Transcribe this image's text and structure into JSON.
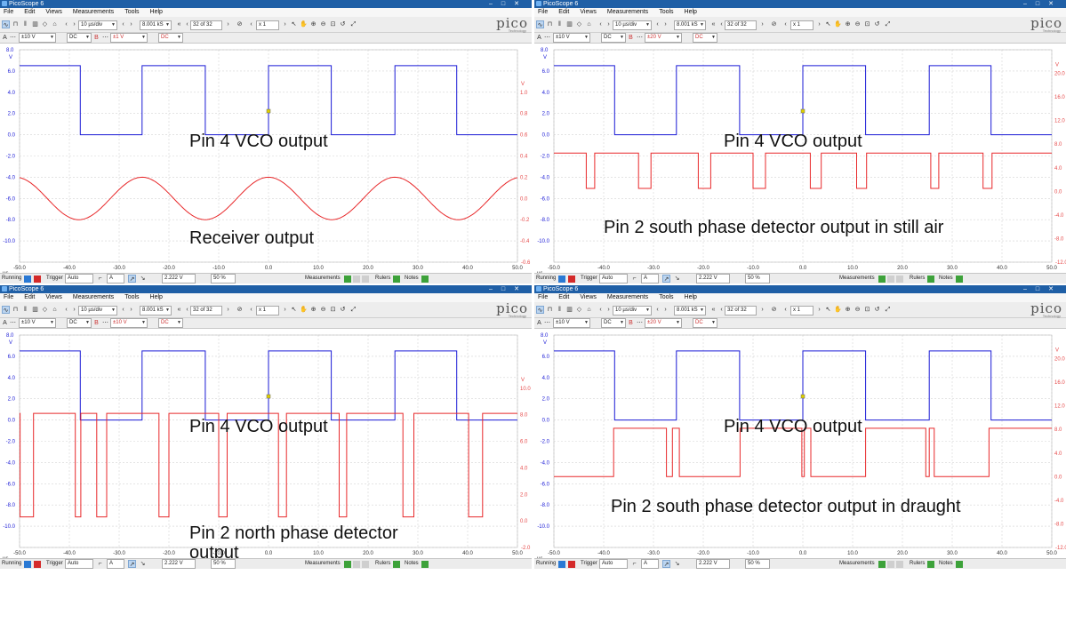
{
  "app_title": "PicoScope 6",
  "menu": [
    "File",
    "Edit",
    "Views",
    "Measurements",
    "Tools",
    "Help"
  ],
  "toolbar": {
    "timebase": "10 µs/div",
    "samples": "8.001 kS",
    "buffer": "32 of 32",
    "zoom": "x 1",
    "brand": "pico",
    "brand_sub": "Technology"
  },
  "statusbar": {
    "state": "Running",
    "trigger_label": "Trigger",
    "trigger_mode": "Auto",
    "channel": "A",
    "level": "2.222 V",
    "pretrigger": "50 %",
    "measurements": "Measurements",
    "rulers": "Rulers",
    "notes": "Notes"
  },
  "colors": {
    "blue_trace": "#1a1ad6",
    "red_trace": "#e8292b",
    "titlebar": "#1f5fa6",
    "red_axis": "#e64a4a"
  },
  "x_ticks": [
    "-50.0",
    "-40.0",
    "-30.0",
    "-20.0",
    "-10.0",
    "0.0",
    "10.0",
    "20.0",
    "30.0",
    "40.0",
    "50.0"
  ],
  "x_unit": "µs",
  "left_unit": "V",
  "left_top_label": "8.0",
  "left_ticks": [
    "6.0",
    "4.0",
    "2.0",
    "0.0",
    "-2.0",
    "-4.0",
    "-6.0",
    "-8.0",
    "-10.0"
  ],
  "panels": [
    {
      "chan_a_range": "±10 V",
      "chan_b_range": "±1 V",
      "coupling": "DC",
      "right_ticks": [
        "1.0",
        "0.8",
        "0.6",
        "0.4",
        "0.2",
        "0.0",
        "-0.2",
        "-0.4"
      ],
      "right_bottom": "-0.6",
      "right_unit": "V",
      "labels": [
        "Pin 4 VCO output",
        "Receiver output"
      ]
    },
    {
      "chan_a_range": "±10 V",
      "chan_b_range": "±20 V",
      "coupling": "DC",
      "right_ticks": [
        "20.0",
        "16.0",
        "12.0",
        "8.0",
        "4.0",
        "0.0",
        "-4.0",
        "-8.0"
      ],
      "right_bottom": "-12.0",
      "right_unit": "V",
      "labels": [
        "Pin 4 VCO output",
        "Pin 2 south phase detector output in still air"
      ]
    },
    {
      "chan_a_range": "±10 V",
      "chan_b_range": "±10 V",
      "coupling": "DC",
      "right_ticks": [
        "10.0",
        "8.0",
        "6.0",
        "4.0",
        "2.0",
        "0.0"
      ],
      "right_bottom": "-2.0",
      "right_unit": "V",
      "labels": [
        "Pin 4 VCO output",
        "Pin 2 north phase detector output"
      ]
    },
    {
      "chan_a_range": "±10 V",
      "chan_b_range": "±20 V",
      "coupling": "DC",
      "right_ticks": [
        "20.0",
        "16.0",
        "12.0",
        "8.0",
        "4.0",
        "0.0",
        "-4.0",
        "-8.0"
      ],
      "right_bottom": "-12.0",
      "right_unit": "V",
      "labels": [
        "Pin 4 VCO output",
        "Pin 2 south phase detector output in draught"
      ]
    }
  ]
}
